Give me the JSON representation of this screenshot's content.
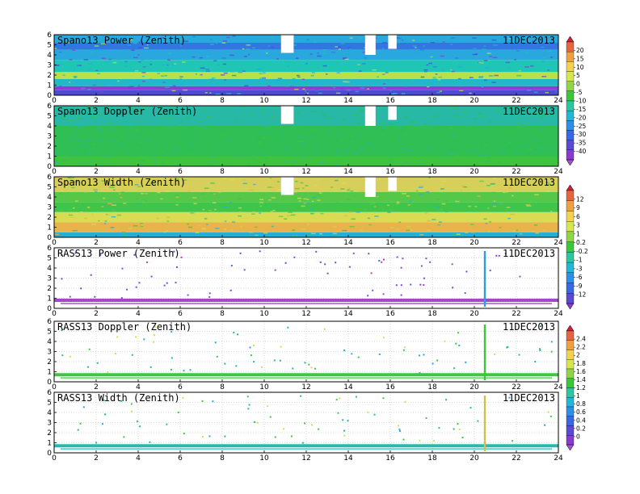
{
  "chart_data": [
    {
      "type": "heatmap",
      "title": "Spano13 Power (Zenith)",
      "date": "11DEC2013",
      "x_ticks": [
        0,
        2,
        4,
        6,
        8,
        10,
        12,
        14,
        16,
        18,
        20,
        22,
        24
      ],
      "y_ticks": [
        0,
        1,
        2,
        3,
        4,
        5,
        6
      ],
      "xlim": [
        0,
        24
      ],
      "ylim": [
        0,
        6
      ],
      "colorbar": "power",
      "fill": "dense",
      "gaps": [
        [
          10.8,
          11.4,
          4.2
        ],
        [
          14.8,
          15.3,
          4.0
        ],
        [
          15.9,
          16.3,
          4.6
        ]
      ],
      "layers": [
        {
          "y": [
            0.0,
            0.5
          ],
          "color": "#4b4bd6"
        },
        {
          "y": [
            0.5,
            0.9
          ],
          "color": "#8a3fd0"
        },
        {
          "y": [
            0.9,
            1.6
          ],
          "color": "#21b8c8"
        },
        {
          "y": [
            1.6,
            2.3
          ],
          "color": "#b7e04a"
        },
        {
          "y": [
            2.3,
            3.5
          ],
          "color": "#1fc6b6"
        },
        {
          "y": [
            3.5,
            4.5
          ],
          "color": "#29a8dd"
        },
        {
          "y": [
            4.5,
            5.2
          ],
          "color": "#2f78e0"
        },
        {
          "y": [
            5.2,
            6.0
          ],
          "color": "#29a8dd"
        }
      ]
    },
    {
      "type": "heatmap",
      "title": "Spano13 Doppler (Zenith)",
      "date": "11DEC2013",
      "x_ticks": [
        0,
        2,
        4,
        6,
        8,
        10,
        12,
        14,
        16,
        18,
        20,
        22,
        24
      ],
      "y_ticks": [
        0,
        1,
        2,
        3,
        4,
        5,
        6
      ],
      "xlim": [
        0,
        24
      ],
      "ylim": [
        0,
        6
      ],
      "colorbar": "power",
      "fill": "dense",
      "gaps": [
        [
          10.8,
          11.4,
          4.2
        ],
        [
          14.8,
          15.3,
          4.0
        ],
        [
          15.9,
          16.3,
          4.6
        ]
      ],
      "layers": [
        {
          "y": [
            0.0,
            1.0
          ],
          "color": "#3ec33e"
        },
        {
          "y": [
            1.0,
            4.0
          ],
          "color": "#2fbf55"
        },
        {
          "y": [
            4.0,
            6.0
          ],
          "color": "#27b8a6"
        }
      ]
    },
    {
      "type": "heatmap",
      "title": "Spano13 Width (Zenith)",
      "date": "11DEC2013",
      "x_ticks": [
        0,
        2,
        4,
        6,
        8,
        10,
        12,
        14,
        16,
        18,
        20,
        22,
        24
      ],
      "y_ticks": [
        0,
        1,
        2,
        3,
        4,
        5,
        6
      ],
      "xlim": [
        0,
        24
      ],
      "ylim": [
        0,
        6
      ],
      "colorbar": "width",
      "fill": "dense",
      "gaps": [
        [
          10.8,
          11.4,
          4.2
        ],
        [
          14.8,
          15.3,
          4.0
        ],
        [
          15.9,
          16.3,
          4.6
        ]
      ],
      "layers": [
        {
          "y": [
            0.0,
            0.5
          ],
          "color": "#22b0d8"
        },
        {
          "y": [
            0.5,
            1.5
          ],
          "color": "#e8b34a"
        },
        {
          "y": [
            1.5,
            2.5
          ],
          "color": "#d9dc52"
        },
        {
          "y": [
            2.5,
            3.5
          ],
          "color": "#3fc64a"
        },
        {
          "y": [
            3.5,
            4.5
          ],
          "color": "#55c84a"
        },
        {
          "y": [
            4.5,
            6.0
          ],
          "color": "#d6cf5a"
        }
      ]
    },
    {
      "type": "heatmap",
      "title": "RASS13 Power (Zenith)",
      "date": "11DEC2013",
      "x_ticks": [
        0,
        2,
        4,
        6,
        8,
        10,
        12,
        14,
        16,
        18,
        20,
        22,
        24
      ],
      "y_ticks": [
        0,
        1,
        2,
        3,
        4,
        5,
        6
      ],
      "xlim": [
        0,
        24
      ],
      "ylim": [
        0,
        6
      ],
      "colorbar": "width",
      "fill": "sparse",
      "band": {
        "y": 0.8,
        "color": "#a547c8"
      },
      "spike": {
        "x": 20.5,
        "color": "#28a0e0"
      },
      "dots": [
        "#8a3fd0",
        "#6a55d8",
        "#a547c8",
        "#4a6ad8"
      ]
    },
    {
      "type": "heatmap",
      "title": "RASS13 Doppler (Zenith)",
      "date": "11DEC2013",
      "x_ticks": [
        0,
        2,
        4,
        6,
        8,
        10,
        12,
        14,
        16,
        18,
        20,
        22,
        24
      ],
      "y_ticks": [
        0,
        1,
        2,
        3,
        4,
        5,
        6
      ],
      "xlim": [
        0,
        24
      ],
      "ylim": [
        0,
        6
      ],
      "colorbar": "doppler",
      "fill": "sparse",
      "band": {
        "y": 0.7,
        "color": "#3fc63f"
      },
      "spike": {
        "x": 20.5,
        "color": "#38c838"
      },
      "dots": [
        "#3fc63f",
        "#28b8a0",
        "#d9dc52",
        "#2aa8dc"
      ]
    },
    {
      "type": "heatmap",
      "title": "RASS13 Width (Zenith)",
      "date": "11DEC2013",
      "x_ticks": [
        0,
        2,
        4,
        6,
        8,
        10,
        12,
        14,
        16,
        18,
        20,
        22,
        24
      ],
      "y_ticks": [
        0,
        1,
        2,
        3,
        4,
        5,
        6
      ],
      "xlim": [
        0,
        24
      ],
      "ylim": [
        0,
        6
      ],
      "colorbar": "doppler",
      "fill": "sparse",
      "band": {
        "y": 0.7,
        "color": "#28b8b0"
      },
      "spike": {
        "x": 20.5,
        "color": "#d0c050"
      },
      "dots": [
        "#3fc63f",
        "#28b8a0",
        "#d9dc52",
        "#2aa8dc"
      ]
    }
  ],
  "colorbars": {
    "power": {
      "labels": [
        "20",
        "15",
        "10",
        "5",
        "0",
        "-5",
        "-10",
        "-15",
        "-20",
        "-25",
        "-30",
        "-35",
        "-40"
      ],
      "colors": [
        "#d21e3c",
        "#e8643c",
        "#f0a03c",
        "#f5d24a",
        "#d4e84a",
        "#8ed648",
        "#38c838",
        "#28c8a0",
        "#20b8d8",
        "#2a90e8",
        "#3868e8",
        "#5a4ad8",
        "#8a3ad0",
        "#a050d0"
      ]
    },
    "width": {
      "labels": [
        "12",
        "9",
        "6",
        "3",
        "1",
        "0.2",
        "-0.2",
        "-1",
        "-3",
        "-6",
        "-9",
        "-12"
      ],
      "colors": [
        "#d21e3c",
        "#e8643c",
        "#f0a03c",
        "#f5d24a",
        "#d4e84a",
        "#8ed648",
        "#38c838",
        "#28c8a0",
        "#20b8d8",
        "#2a90e8",
        "#3868e8",
        "#5a4ad8",
        "#8a3ad0"
      ]
    },
    "doppler": {
      "labels": [
        "2.4",
        "2.2",
        "2",
        "1.8",
        "1.6",
        "1.4",
        "1.2",
        "1",
        "0.8",
        "0.6",
        "0.4",
        "0.2",
        "0"
      ],
      "colors": [
        "#d21e3c",
        "#e8643c",
        "#f0a03c",
        "#f5d24a",
        "#d4e84a",
        "#8ed648",
        "#38c838",
        "#28c8a0",
        "#20b8d8",
        "#2a90e8",
        "#3868e8",
        "#5a4ad8",
        "#8a3ad0",
        "#a050d0"
      ]
    }
  }
}
